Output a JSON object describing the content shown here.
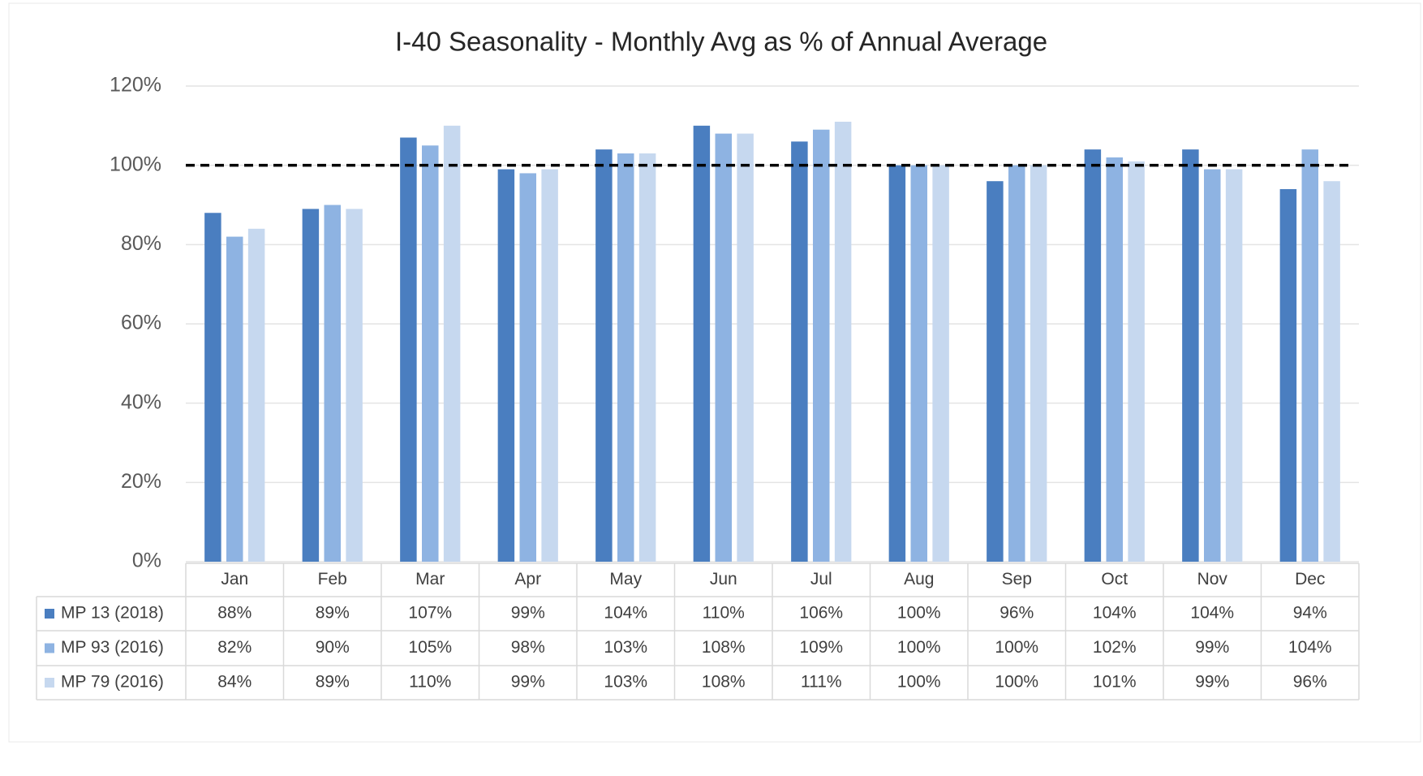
{
  "chart_data": {
    "type": "bar",
    "title": "I-40 Seasonality - Monthly Avg as % of Annual Average",
    "categories": [
      "Jan",
      "Feb",
      "Mar",
      "Apr",
      "May",
      "Jun",
      "Jul",
      "Aug",
      "Sep",
      "Oct",
      "Nov",
      "Dec"
    ],
    "series": [
      {
        "name": "MP 13 (2018)",
        "color": "#4a7ec0",
        "values": [
          88,
          89,
          107,
          99,
          104,
          110,
          106,
          100,
          96,
          104,
          104,
          94
        ],
        "value_labels": [
          "88%",
          "89%",
          "107%",
          "99%",
          "104%",
          "110%",
          "106%",
          "100%",
          "96%",
          "104%",
          "104%",
          "94%"
        ]
      },
      {
        "name": "MP 93 (2016)",
        "color": "#8eb3e2",
        "values": [
          82,
          90,
          105,
          98,
          103,
          108,
          109,
          100,
          100,
          102,
          99,
          104
        ],
        "value_labels": [
          "82%",
          "90%",
          "105%",
          "98%",
          "103%",
          "108%",
          "109%",
          "100%",
          "100%",
          "102%",
          "99%",
          "104%"
        ]
      },
      {
        "name": "MP 79 (2016)",
        "color": "#c6d8ef",
        "values": [
          84,
          89,
          110,
          99,
          103,
          108,
          111,
          100,
          100,
          101,
          99,
          96
        ],
        "value_labels": [
          "84%",
          "89%",
          "110%",
          "99%",
          "103%",
          "108%",
          "111%",
          "100%",
          "100%",
          "101%",
          "99%",
          "96%"
        ]
      }
    ],
    "ylim": [
      0,
      120
    ],
    "yticks": [
      {
        "value": 0,
        "label": "0%"
      },
      {
        "value": 20,
        "label": "20%"
      },
      {
        "value": 40,
        "label": "40%"
      },
      {
        "value": 60,
        "label": "60%"
      },
      {
        "value": 80,
        "label": "80%"
      },
      {
        "value": 100,
        "label": "100%"
      },
      {
        "value": 120,
        "label": "120%"
      }
    ],
    "grid": true,
    "reference_line": 100
  }
}
